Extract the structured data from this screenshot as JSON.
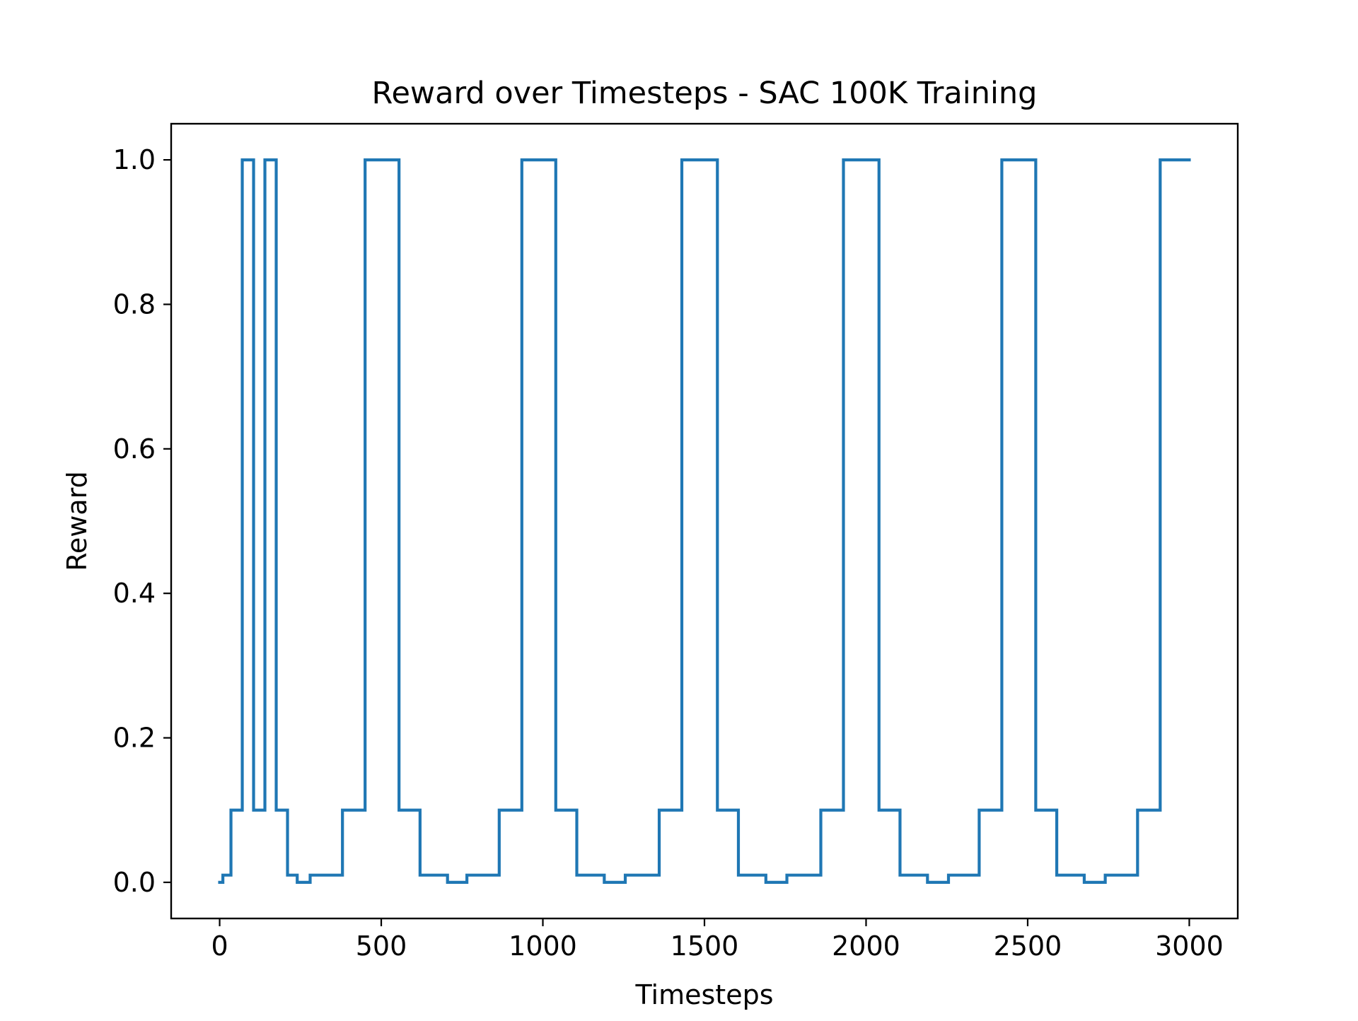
{
  "chart_data": {
    "type": "line",
    "title": "Reward over Timesteps - SAC 100K Training",
    "xlabel": "Timesteps",
    "ylabel": "Reward",
    "xlim": [
      -150,
      3150
    ],
    "ylim": [
      -0.05,
      1.05
    ],
    "xticks": [
      0,
      500,
      1000,
      1500,
      2000,
      2500,
      3000
    ],
    "xtick_labels": [
      "0",
      "500",
      "1000",
      "1500",
      "2000",
      "2500",
      "3000"
    ],
    "yticks": [
      0.0,
      0.2,
      0.4,
      0.6,
      0.8,
      1.0
    ],
    "ytick_labels": [
      "0.0",
      "0.2",
      "0.4",
      "0.6",
      "0.8",
      "1.0"
    ],
    "grid": false,
    "legend": false,
    "series": [
      {
        "color": "#1f77b4",
        "step": true,
        "x": [
          0,
          10,
          35,
          70,
          105,
          140,
          175,
          210,
          240,
          280,
          380,
          450,
          555,
          620,
          705,
          765,
          865,
          935,
          1040,
          1105,
          1190,
          1255,
          1360,
          1430,
          1540,
          1605,
          1690,
          1755,
          1860,
          1930,
          2040,
          2105,
          2190,
          2255,
          2350,
          2420,
          2525,
          2590,
          2675,
          2740,
          2840,
          2910,
          3000
        ],
        "y": [
          0.0,
          0.01,
          0.1,
          1.0,
          0.1,
          1.0,
          0.1,
          0.01,
          0.0,
          0.01,
          0.1,
          1.0,
          0.1,
          0.01,
          0.0,
          0.01,
          0.1,
          1.0,
          0.1,
          0.01,
          0.0,
          0.01,
          0.1,
          1.0,
          0.1,
          0.01,
          0.0,
          0.01,
          0.1,
          1.0,
          0.1,
          0.01,
          0.0,
          0.01,
          0.1,
          1.0,
          0.1,
          0.01,
          0.0,
          0.01,
          0.1,
          1.0,
          1.0
        ]
      }
    ]
  }
}
